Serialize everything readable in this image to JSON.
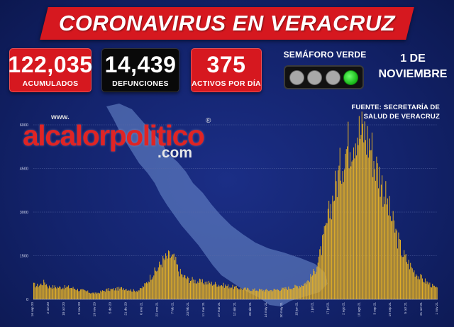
{
  "title": "CORONAVIRUS EN VERACRUZ",
  "stats": {
    "acumulados": {
      "value": "122,035",
      "label": "ACUMULADOS",
      "color": "#d6181f"
    },
    "defunciones": {
      "value": "14,439",
      "label": "DEFUNCIONES",
      "color": "#090909"
    },
    "activos": {
      "value": "375",
      "label": "ACTIVOS POR DÍA",
      "color": "#d6181f"
    }
  },
  "semaforo": {
    "label": "SEMÁFORO VERDE",
    "lights": [
      "off",
      "off",
      "off",
      "on"
    ],
    "on_color": "#18b818"
  },
  "date": {
    "line1": "1 DE",
    "line2": "NOVIEMBRE"
  },
  "fuente": {
    "line1": "FUENTE: SECRETARÍA DE",
    "line2": "SALUD DE VERACRUZ"
  },
  "watermark": {
    "www": "www.",
    "main": "alcalorpolitico",
    "reg": "®",
    "com": ".com"
  },
  "chart_data": {
    "type": "bar",
    "bar_color": "#e8b325",
    "yticks": [
      0,
      1500,
      3000,
      4500,
      6000
    ],
    "ylim": [
      0,
      6000
    ],
    "xticks": [
      "16 sep 20",
      "2 oct 20",
      "18 oct 20",
      "3 nov 20",
      "19 nov 20",
      "5 dic 20",
      "21 dic 20",
      "6 ene 21",
      "22 ene 21",
      "7 feb 21",
      "23 feb 21",
      "11 mar 21",
      "27 mar 21",
      "12 abr 21",
      "28 abr 21",
      "14 may 21",
      "30 may 21",
      "15 jun 21",
      "1 jul 21",
      "17 jul 21",
      "2 ago 21",
      "18 ago 21",
      "3 sep 21",
      "19 sep 21",
      "5 oct 21",
      "21 oct 21",
      "1 nov 21"
    ],
    "control_points": [
      [
        0,
        500
      ],
      [
        4,
        470
      ],
      [
        8,
        520
      ],
      [
        12,
        600
      ],
      [
        16,
        440
      ],
      [
        22,
        430
      ],
      [
        30,
        410
      ],
      [
        38,
        420
      ],
      [
        44,
        380
      ],
      [
        50,
        320
      ],
      [
        56,
        290
      ],
      [
        62,
        230
      ],
      [
        68,
        200
      ],
      [
        74,
        270
      ],
      [
        80,
        330
      ],
      [
        86,
        340
      ],
      [
        92,
        360
      ],
      [
        98,
        390
      ],
      [
        104,
        340
      ],
      [
        110,
        290
      ],
      [
        116,
        330
      ],
      [
        122,
        520
      ],
      [
        128,
        800
      ],
      [
        134,
        1000
      ],
      [
        140,
        1300
      ],
      [
        146,
        1450
      ],
      [
        150,
        1500
      ],
      [
        154,
        1350
      ],
      [
        158,
        1000
      ],
      [
        162,
        820
      ],
      [
        168,
        700
      ],
      [
        176,
        640
      ],
      [
        184,
        590
      ],
      [
        192,
        560
      ],
      [
        200,
        520
      ],
      [
        208,
        480
      ],
      [
        216,
        430
      ],
      [
        224,
        380
      ],
      [
        232,
        350
      ],
      [
        240,
        330
      ],
      [
        248,
        320
      ],
      [
        256,
        310
      ],
      [
        264,
        330
      ],
      [
        272,
        360
      ],
      [
        280,
        400
      ],
      [
        288,
        450
      ],
      [
        294,
        520
      ],
      [
        300,
        650
      ],
      [
        306,
        950
      ],
      [
        312,
        1500
      ],
      [
        318,
        2300
      ],
      [
        324,
        3200
      ],
      [
        330,
        4000
      ],
      [
        336,
        4700
      ],
      [
        342,
        5300
      ],
      [
        348,
        5600
      ],
      [
        352,
        5900
      ],
      [
        356,
        5700
      ],
      [
        360,
        5800
      ],
      [
        364,
        5500
      ],
      [
        368,
        5300
      ],
      [
        372,
        4700
      ],
      [
        378,
        4200
      ],
      [
        384,
        3500
      ],
      [
        390,
        2800
      ],
      [
        396,
        2200
      ],
      [
        402,
        1600
      ],
      [
        408,
        1300
      ],
      [
        414,
        1000
      ],
      [
        420,
        800
      ],
      [
        426,
        650
      ],
      [
        432,
        520
      ],
      [
        438,
        400
      ],
      [
        440,
        350
      ]
    ]
  }
}
